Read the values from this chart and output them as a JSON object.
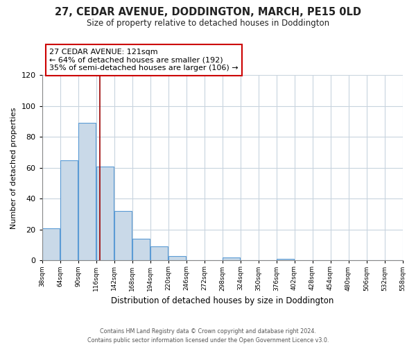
{
  "title": "27, CEDAR AVENUE, DODDINGTON, MARCH, PE15 0LD",
  "subtitle": "Size of property relative to detached houses in Doddington",
  "xlabel": "Distribution of detached houses by size in Doddington",
  "ylabel": "Number of detached properties",
  "bar_edges": [
    38,
    64,
    90,
    116,
    142,
    168,
    194,
    220,
    246,
    272,
    298,
    324,
    350,
    376,
    402,
    428,
    454,
    480,
    506,
    532,
    558
  ],
  "bar_heights": [
    21,
    65,
    89,
    61,
    32,
    14,
    9,
    3,
    0,
    0,
    2,
    0,
    0,
    1,
    0,
    0,
    0,
    0,
    0,
    0
  ],
  "bar_color": "#c9d9e8",
  "bar_edge_color": "#5b9bd5",
  "property_line_x": 121,
  "property_line_color": "#9b0000",
  "annotation_line1": "27 CEDAR AVENUE: 121sqm",
  "annotation_line2": "← 64% of detached houses are smaller (192)",
  "annotation_line3": "35% of semi-detached houses are larger (106) →",
  "annotation_box_color": "#cc0000",
  "ylim": [
    0,
    120
  ],
  "yticks": [
    0,
    20,
    40,
    60,
    80,
    100,
    120
  ],
  "tick_labels": [
    "38sqm",
    "64sqm",
    "90sqm",
    "116sqm",
    "142sqm",
    "168sqm",
    "194sqm",
    "220sqm",
    "246sqm",
    "272sqm",
    "298sqm",
    "324sqm",
    "350sqm",
    "376sqm",
    "402sqm",
    "428sqm",
    "454sqm",
    "480sqm",
    "506sqm",
    "532sqm",
    "558sqm"
  ],
  "footer_line1": "Contains HM Land Registry data © Crown copyright and database right 2024.",
  "footer_line2": "Contains public sector information licensed under the Open Government Licence v3.0.",
  "bg_color": "#ffffff",
  "grid_color": "#c8d4de"
}
